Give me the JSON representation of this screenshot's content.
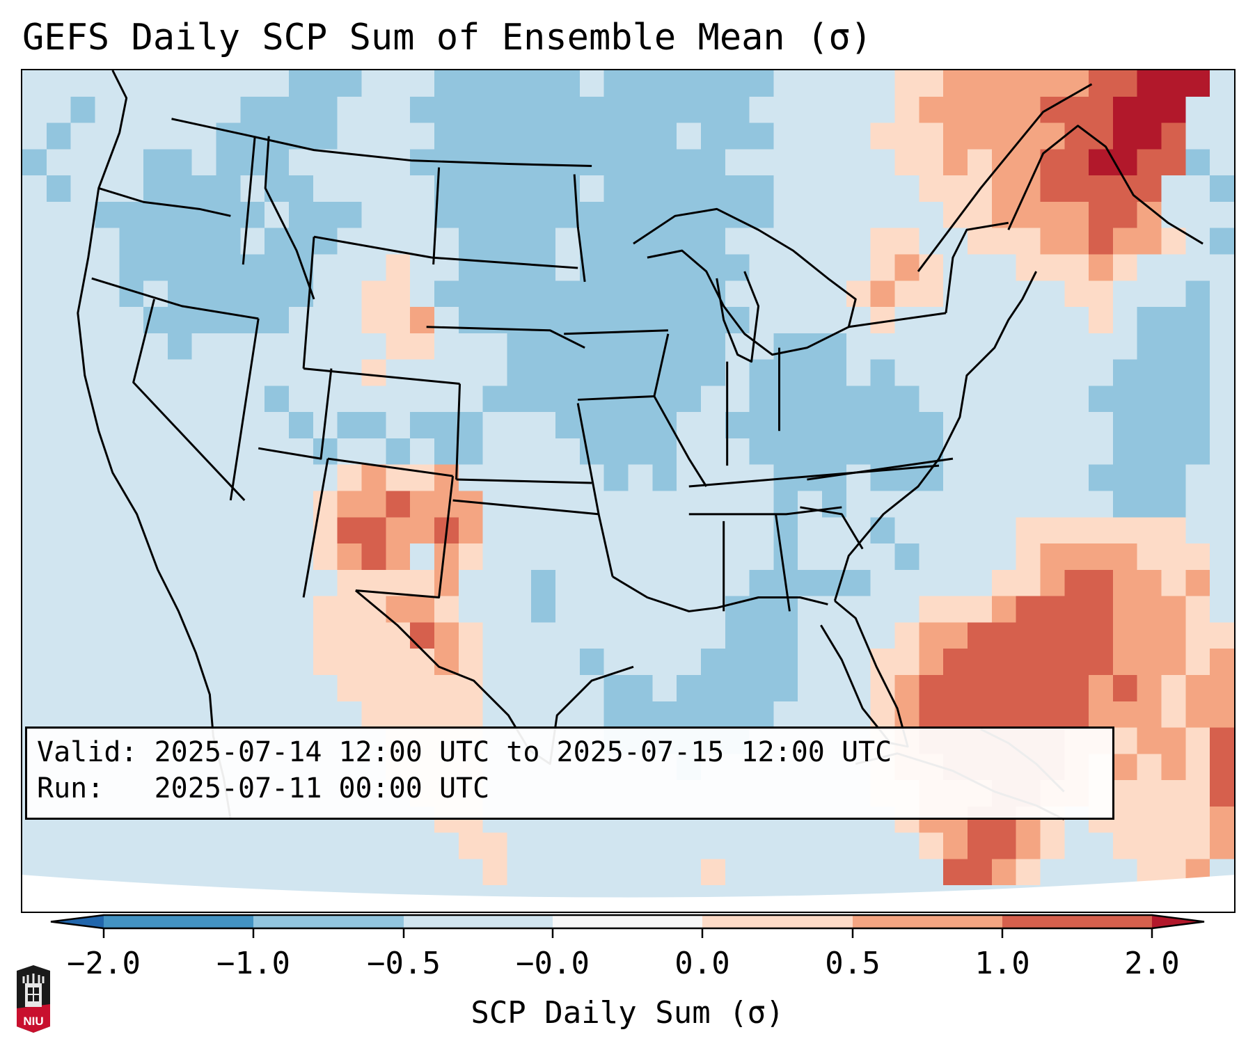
{
  "title": "GEFS Daily SCP Sum of Ensemble Mean (σ)",
  "info_box": {
    "valid_line": "Valid: 2025-07-14 12:00 UTC to 2025-07-15 12:00 UTC",
    "run_line": "Run:   2025-07-11 00:00 UTC"
  },
  "colorbar": {
    "label": "SCP Daily Sum (σ)",
    "ticks": [
      "−2.0",
      "−1.0",
      "−0.5",
      "−0.0",
      "0.0",
      "0.5",
      "1.0",
      "2.0"
    ],
    "bounds": [
      -2.0,
      -1.0,
      -0.5,
      -0.0,
      0.0,
      0.5,
      1.0,
      2.0
    ],
    "colors": [
      "#4393c3",
      "#92c5de",
      "#d1e5f0",
      "#f7f7f7",
      "#fddbc7",
      "#f4a582",
      "#d6604d"
    ],
    "under_color": "#2166ac",
    "over_color": "#b2182b",
    "extend": "both"
  },
  "logo": {
    "text": "NIU",
    "colors": {
      "dark": "#1a1a1a",
      "red": "#c8102e"
    }
  },
  "chart_data": {
    "type": "heatmap",
    "title": "GEFS Daily SCP Sum of Ensemble Mean (σ)",
    "colorbar_label": "SCP Daily Sum (σ)",
    "region": "Contiguous United States",
    "legend_placement": "bottom",
    "class_key": {
      "a": "< -2.0",
      "b": "-2.0 to -1.0",
      "c": "-1.0 to -0.5",
      "d": "-0.5 to -0.0",
      "e": "-0.0 to 0.0",
      "f": "0.0 to 0.5",
      "g": "0.5 to 1.0",
      "h": "1.0 to 2.0",
      "i": "> 2.0"
    },
    "grid_rows_north_to_south": [
      "dddddddddddcccdddccccccdcccccccdddddffgggggghhiiid",
      "ddcddddddccccdddccccccccccccccddddddfggggghhhiiidd",
      "dcddddddcccccddddccccccccccdcccddddfffggggghhiihdd",
      "cddddccdcccdddddcccccccccccccdddddddffgfgghhiihhcd",
      "dcdddccccdccdddddccccccdcccccccddddddfffgghhhhhddc",
      "dddcccccccdcccdddccccccccccccccdddddddffgggghhgddd",
      "ddddcccccdcccdddddccccdccccccddddddffddfffgghggfdc",
      "ddddccccccccdddfddccccdcccccccdddddfgfdddfffgfdddd",
      "ddddcdccccccddffdccccccccccccdddddfgffdddddffdddcd",
      "dddddccccccdddffgdccccccccccccdddddfddddddddfdcccd",
      "ddddddcddddddddffdddcccccccccddcccddddddddddddcccd",
      "ddddddddddddddfdddddcccccccccdccccdcdddddddddccccd",
      "ddddddddddcddddddddcccccccccddcccccccdddddddcccccd",
      "dddddddddddcdccdcccdddcccccddcccccccccdddddddccccd",
      "ddddddddddddcddcdccddddccccdddccccccccdddddddccccd",
      "dddddddddddddfgffgddddddcdcddddcccdcccddddddccccdd",
      "ddddddddddddfgghgggddddddddddddcdcdddddddddddcccdd",
      "ddddddddddddfhhgghgddddddddddddcdddcdddddfffffffdd",
      "ddddddddddddfghgdgfddddddddddddcddddcddddfggggfffd",
      "dddddddddddddffffgdddcddddddddcccccdddddffghhggfgd",
      "ddddddddddddfffggfdddcdddddddcccdddddfffghhhhgggfd",
      "ddddddddddddffffhgfddddddddddcccddddfgghhhhhhgggff",
      "ddddddddddddfffffgfddddcddddccccdddffghhhhhhhgggfg",
      "dddddddddddddffffffdddddccdcccccdddfghhhhhhhghgfgg",
      "ddddddddddddddfffffdddddcccccccddddfghhhhhhhgggfgg",
      "dddddddddddddddffffdddddccccccdddddfghhhhhhggfggfh",
      "dddddddddddddddffffddddddddcdddddddfgghhhhhgfgfgfh",
      "ddddddddddddddddfffddddddddddddddddffggghhggfffffh",
      "dddddddddddddddddffdddddddddddddddddfgghhgfdfffffg",
      "ddddddddddddddddddffdddddddddddddddddfghhgfddffffg",
      "dddddddddddddddddddfddddddddfdddddddddhhgfddddffgd",
      "dddddddddddddddddddddddddddddddddddddddddddddddddd"
    ]
  }
}
